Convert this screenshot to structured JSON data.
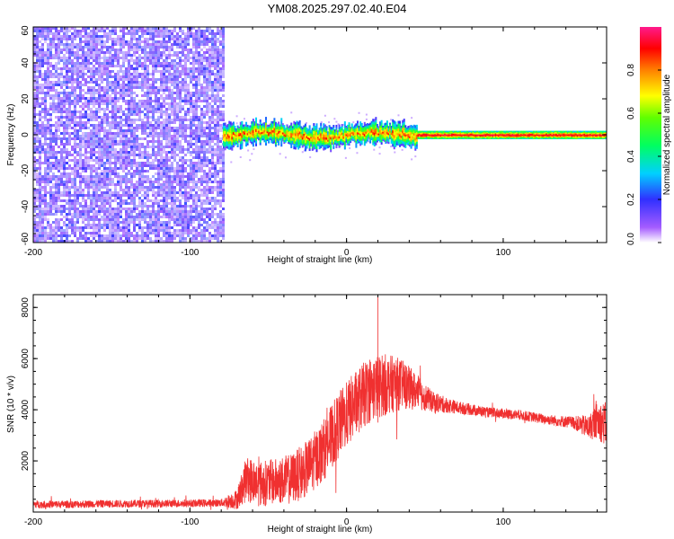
{
  "title": "YM08.2025.297.02.40.E04",
  "chart_data": [
    {
      "type": "heatmap",
      "xlabel": "Height of straight line (km)",
      "ylabel": "Frequency (Hz)",
      "xlim": [
        -200,
        166
      ],
      "ylim": [
        -60,
        60
      ],
      "x_ticks": [
        -200,
        -100,
        0,
        100
      ],
      "x_tick_labels": [
        "-200",
        "-100",
        "0",
        "100"
      ],
      "y_ticks": [
        -60,
        -40,
        -20,
        0,
        20,
        40,
        60
      ],
      "y_tick_labels": [
        "-60",
        "-40",
        "-20",
        "0",
        "20",
        "40",
        "60"
      ],
      "colorbar": {
        "label": "Normalized spectral amplitude",
        "range": [
          0,
          1
        ],
        "ticks": [
          0.0,
          0.2,
          0.4,
          0.6,
          0.8
        ],
        "tick_labels": [
          "0.0",
          "0.2",
          "0.4",
          "0.6",
          "0.8"
        ]
      },
      "regions": [
        {
          "x_range": [
            -200,
            -79
          ],
          "freq_range": [
            -60,
            60
          ],
          "amplitude": "low (0.05-0.2)",
          "pattern": "noise"
        },
        {
          "x_range": [
            -79,
            45
          ],
          "freq_center": 0,
          "freq_halfwidth": 6,
          "amplitude": "0.3-1.0",
          "pattern": "wandering band"
        },
        {
          "x_range": [
            45,
            166
          ],
          "freq_center": 0,
          "freq_halfwidth": 2,
          "amplitude": "0.5-1.0",
          "pattern": "narrow band"
        }
      ]
    },
    {
      "type": "line",
      "xlabel": "Height of straight line (km)",
      "ylabel": "SNR (10 * v/v)",
      "xlim": [
        -200,
        166
      ],
      "ylim": [
        0,
        8500
      ],
      "x_ticks": [
        -200,
        -100,
        0,
        100
      ],
      "x_tick_labels": [
        "-200",
        "-100",
        "0",
        "100"
      ],
      "y_ticks": [
        2000,
        4000,
        6000,
        8000
      ],
      "y_tick_labels": [
        "2000",
        "4000",
        "6000",
        "8000"
      ],
      "color": "#f03030",
      "series": [
        {
          "x": [
            -200,
            -180,
            -160,
            -140,
            -120,
            -100,
            -80,
            -70,
            -64,
            -55,
            -45,
            -35,
            -25,
            -15,
            -5,
            5,
            15,
            25,
            35,
            45,
            55,
            70,
            90,
            110,
            130,
            145,
            155,
            160,
            166
          ],
          "y": [
            300,
            300,
            320,
            330,
            330,
            340,
            360,
            500,
            1300,
            1100,
            1200,
            1300,
            1700,
            2400,
            3400,
            4200,
            4800,
            5000,
            5000,
            4700,
            4300,
            4100,
            3900,
            3800,
            3600,
            3500,
            3300,
            3600,
            3400
          ],
          "spread": [
            150,
            150,
            150,
            150,
            150,
            150,
            150,
            400,
            900,
            900,
            900,
            1000,
            1100,
            1200,
            1300,
            1300,
            1300,
            1200,
            1000,
            700,
            400,
            250,
            200,
            200,
            200,
            250,
            500,
            700,
            900
          ]
        }
      ],
      "peak": {
        "x": 20,
        "y": 8400
      }
    }
  ]
}
